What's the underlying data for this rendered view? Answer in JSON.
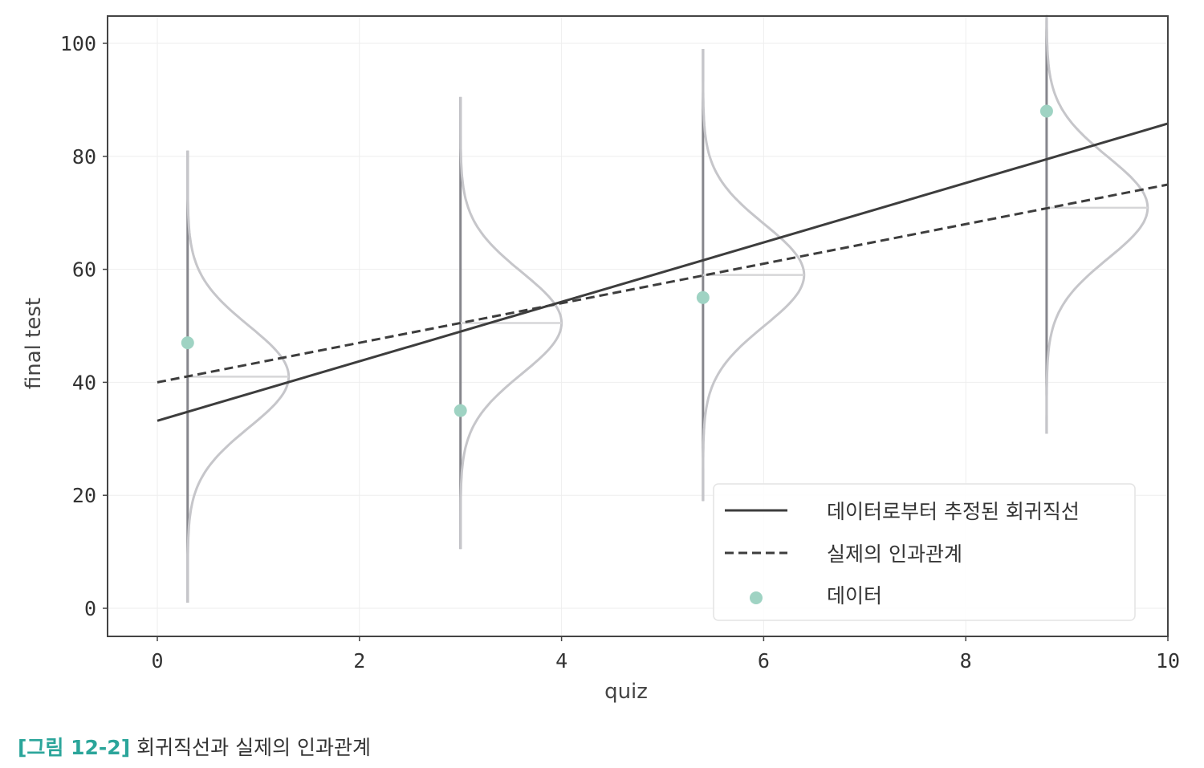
{
  "chart_data": {
    "type": "scatter",
    "xlabel": "quiz",
    "ylabel": "final test",
    "xlim": [
      -0.5,
      10
    ],
    "ylim": [
      -5,
      105
    ],
    "xticks": [
      0,
      2,
      4,
      6,
      8,
      10
    ],
    "yticks": [
      0,
      20,
      40,
      60,
      80,
      100
    ],
    "grid": true,
    "legend_position": "bottom-right",
    "colors": {
      "fitted_line": "#3d3d3d",
      "true_line": "#3d3d3d",
      "points": "#9fd3c3",
      "distribution": "#c6c6ca",
      "range_bar": "#86868c"
    },
    "series": [
      {
        "name": "데이터로부터 추정된 회귀직선",
        "kind": "line",
        "style": "solid",
        "x": [
          0,
          10
        ],
        "y": [
          33.2,
          85.8
        ]
      },
      {
        "name": "실제의 인과관계",
        "kind": "line",
        "style": "dashed",
        "x": [
          0,
          10
        ],
        "y": [
          40,
          75
        ]
      },
      {
        "name": "데이터",
        "kind": "scatter",
        "x": [
          0.3,
          3.0,
          5.4,
          8.8
        ],
        "y": [
          47,
          35,
          55,
          88
        ]
      }
    ],
    "distributions": [
      {
        "x": 0.3,
        "mean": 41,
        "sd": 9,
        "y_min": 1,
        "y_max": 81
      },
      {
        "x": 3.0,
        "mean": 50.5,
        "sd": 9,
        "y_min": 10.5,
        "y_max": 90.5
      },
      {
        "x": 5.4,
        "mean": 59,
        "sd": 9,
        "y_min": 19,
        "y_max": 99
      },
      {
        "x": 8.8,
        "mean": 70.9,
        "sd": 9,
        "y_min": 30.9,
        "y_max": 105
      }
    ]
  },
  "caption": {
    "figure_number": "[그림 12-2]",
    "text": "회귀직선과 실제의 인과관계"
  }
}
